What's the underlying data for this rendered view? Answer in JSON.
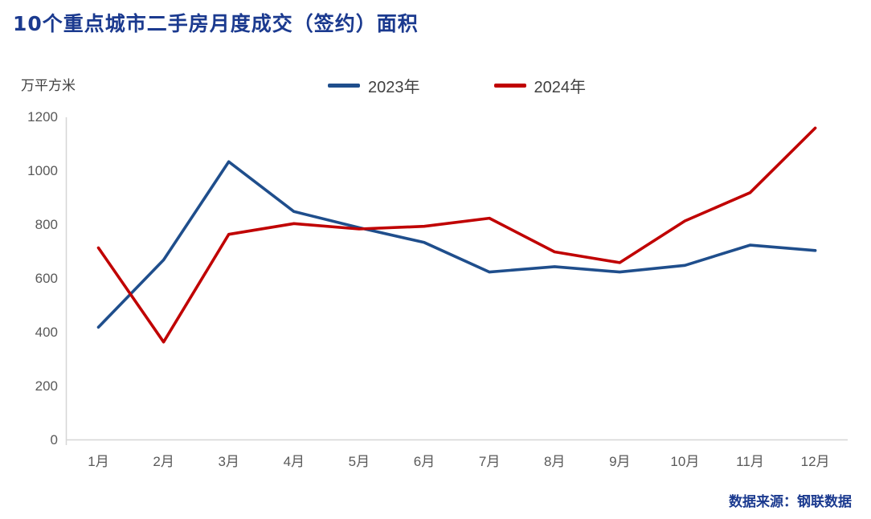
{
  "page": {
    "title": "10个重点城市二手房月度成交（签约）面积",
    "source_note": "数据来源：钢联数据"
  },
  "chart_data": {
    "type": "line",
    "title": "10个重点城市二手房月度成交（签约）面积",
    "unit_label": "万平方米",
    "xlabel": "",
    "ylabel": "万平方米",
    "categories": [
      "1月",
      "2月",
      "3月",
      "4月",
      "5月",
      "6月",
      "7月",
      "8月",
      "9月",
      "10月",
      "11月",
      "12月"
    ],
    "series": [
      {
        "name": "2023年",
        "color": "#1f4e8c",
        "values": [
          420,
          670,
          1035,
          850,
          790,
          735,
          625,
          645,
          625,
          650,
          725,
          705
        ]
      },
      {
        "name": "2024年",
        "color": "#c00000",
        "values": [
          715,
          365,
          765,
          805,
          785,
          795,
          825,
          700,
          660,
          815,
          920,
          1160
        ]
      }
    ],
    "ylim": [
      0,
      1200
    ],
    "y_ticks": [
      0,
      200,
      400,
      600,
      800,
      1000,
      1200
    ],
    "grid": false,
    "legend_position": "top-center",
    "axis_color": "#d6d6d6",
    "tick_label_color": "#595959",
    "source_note": "数据来源：钢联数据"
  }
}
